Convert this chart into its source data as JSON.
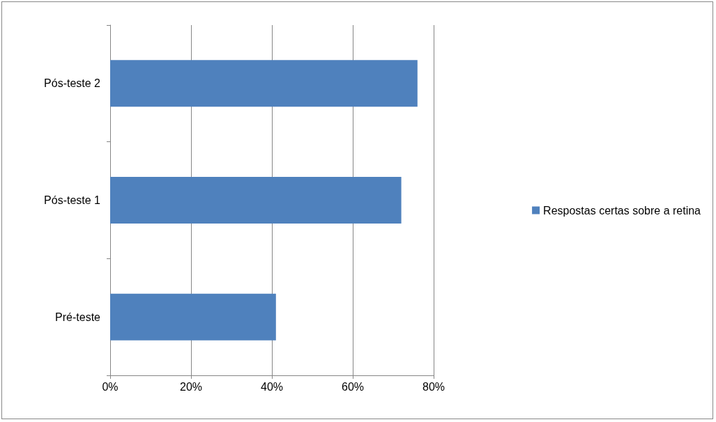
{
  "chart_data": {
    "type": "bar",
    "orientation": "horizontal",
    "categories": [
      "Pós-teste 2",
      "Pós-teste 1",
      "Pré-teste"
    ],
    "series": [
      {
        "name": "Respostas certas sobre a retina",
        "color": "#4f81bd",
        "values": [
          76,
          72,
          41
        ]
      }
    ],
    "xlim": [
      0,
      80
    ],
    "xticks": [
      {
        "value": 0,
        "label": "0%"
      },
      {
        "value": 20,
        "label": "20%"
      },
      {
        "value": 40,
        "label": "40%"
      },
      {
        "value": 60,
        "label": "60%"
      },
      {
        "value": 80,
        "label": "80%"
      }
    ],
    "grid": "x",
    "legend": "right"
  }
}
